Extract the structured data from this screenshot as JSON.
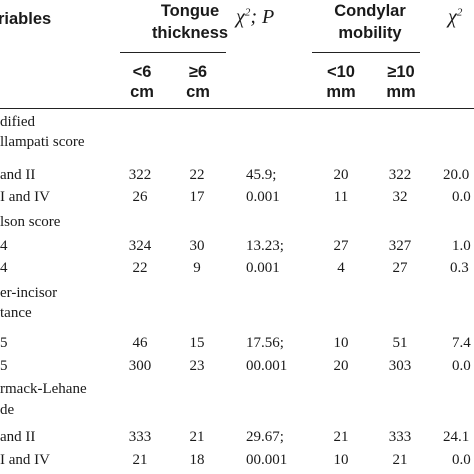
{
  "header": {
    "variables": "riables",
    "tongue_group": [
      "Tongue",
      "thickness"
    ],
    "condylar_group": [
      "Condylar",
      "mobility"
    ],
    "chi_sym": "χ",
    "chi_sup": "2",
    "chi_rest": "; P",
    "chi_partial": "χ",
    "chi_partial_sup": "2",
    "sub_lt6": [
      "<6",
      "cm"
    ],
    "sub_ge6": [
      "≥6",
      "cm"
    ],
    "sub_lt10": [
      "<10",
      "mm"
    ],
    "sub_ge10": [
      "≥10",
      "mm"
    ]
  },
  "rows": {
    "mallampati_l1": "dified",
    "mallampati_l2": "llampati score",
    "mallampati_a": {
      "label": "and II",
      "t1": "322",
      "t2": "22",
      "chi": "45.9;",
      "c1": "20",
      "c2": "322",
      "c3": "20.0"
    },
    "mallampati_b": {
      "label": "I and IV",
      "t1": "26",
      "t2": "17",
      "chi": "0.001",
      "c1": "11",
      "c2": "32",
      "c3": "0.0"
    },
    "wilson_l1": "lson score",
    "wilson_a": {
      "label": "4",
      "t1": "324",
      "t2": "30",
      "chi": "13.23;",
      "c1": "27",
      "c2": "327",
      "c3": "1.0"
    },
    "wilson_b": {
      "label": "4",
      "t1": "22",
      "t2": "9",
      "chi": "0.001",
      "c1": "4",
      "c2": "27",
      "c3": "0.3"
    },
    "incisor_l1": "er-incisor",
    "incisor_l2": "tance",
    "incisor_a": {
      "label": "5",
      "t1": "46",
      "t2": "15",
      "chi": "17.56;",
      "c1": "10",
      "c2": "51",
      "c3": "7.4"
    },
    "incisor_b": {
      "label": "5",
      "t1": "300",
      "t2": "23",
      "chi": "00.001",
      "c1": "20",
      "c2": "303",
      "c3": "0.0"
    },
    "cormack_l1": "rmack-Lehane",
    "cormack_l2": "de",
    "cormack_a": {
      "label": "and II",
      "t1": "333",
      "t2": "21",
      "chi": "29.67;",
      "c1": "21",
      "c2": "333",
      "c3": "24.1"
    },
    "cormack_b": {
      "label": "I and IV",
      "t1": "21",
      "t2": "18",
      "chi": "00.001",
      "c1": "10",
      "c2": "21",
      "c3": "0.0"
    }
  }
}
